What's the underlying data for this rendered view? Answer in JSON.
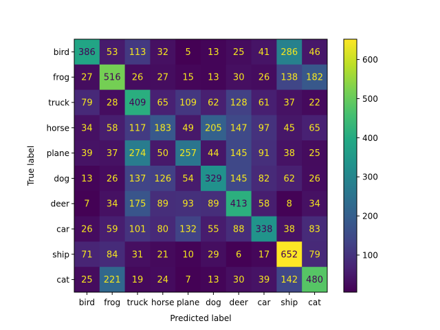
{
  "chart_data": {
    "type": "heatmap",
    "title": "",
    "xlabel": "Predicted label",
    "ylabel": "True label",
    "x_categories": [
      "bird",
      "frog",
      "truck",
      "horse",
      "plane",
      "dog",
      "deer",
      "car",
      "ship",
      "cat"
    ],
    "y_categories": [
      "bird",
      "frog",
      "truck",
      "horse",
      "plane",
      "dog",
      "deer",
      "car",
      "ship",
      "cat"
    ],
    "values": [
      [
        386,
        53,
        113,
        32,
        5,
        13,
        25,
        41,
        286,
        46
      ],
      [
        27,
        516,
        26,
        27,
        15,
        13,
        30,
        26,
        138,
        182
      ],
      [
        79,
        28,
        409,
        65,
        109,
        62,
        128,
        61,
        37,
        22
      ],
      [
        34,
        58,
        117,
        183,
        49,
        205,
        147,
        97,
        45,
        65
      ],
      [
        39,
        37,
        274,
        50,
        257,
        44,
        145,
        91,
        38,
        25
      ],
      [
        13,
        26,
        137,
        126,
        54,
        329,
        145,
        82,
        62,
        26
      ],
      [
        7,
        34,
        175,
        89,
        93,
        89,
        413,
        58,
        8,
        34
      ],
      [
        26,
        59,
        101,
        80,
        132,
        55,
        88,
        338,
        38,
        83
      ],
      [
        71,
        84,
        31,
        21,
        10,
        29,
        6,
        17,
        652,
        79
      ],
      [
        25,
        221,
        19,
        24,
        7,
        13,
        30,
        39,
        142,
        480
      ]
    ],
    "colormap": "viridis",
    "vmin": 5,
    "vmax": 652,
    "colorbar_ticks": [
      100,
      200,
      300,
      400,
      500,
      600
    ],
    "text_color_light": "#f5e61f",
    "text_color_dark": "#440154",
    "text_threshold": 328.5,
    "grid": false,
    "legend": "colorbar-right"
  }
}
